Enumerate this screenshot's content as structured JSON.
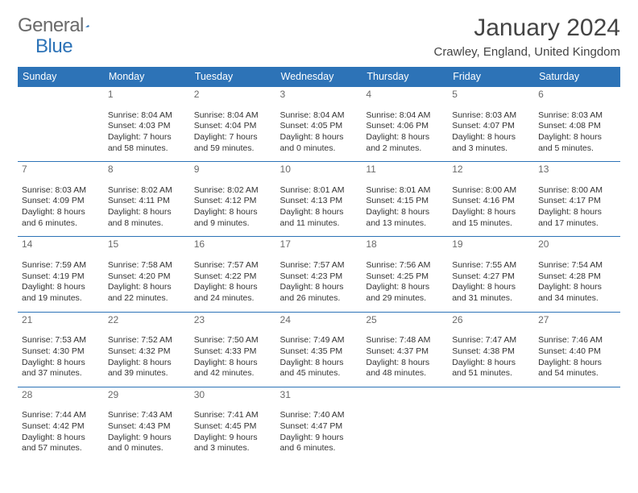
{
  "logo": {
    "word1": "General",
    "word2": "Blue"
  },
  "title": "January 2024",
  "location": "Crawley, England, United Kingdom",
  "colors": {
    "header_bg": "#2d73b7",
    "header_fg": "#ffffff",
    "rule": "#2d73b7",
    "text": "#333333",
    "muted": "#6a6a6a",
    "page_bg": "#ffffff"
  },
  "fonts": {
    "title_size": 30,
    "location_size": 15,
    "weekday_size": 12.5,
    "cell_size": 10.5
  },
  "weekdays": [
    "Sunday",
    "Monday",
    "Tuesday",
    "Wednesday",
    "Thursday",
    "Friday",
    "Saturday"
  ],
  "weeks": [
    [
      null,
      {
        "n": "1",
        "sunrise": "8:04 AM",
        "sunset": "4:03 PM",
        "daylight": "7 hours and 58 minutes."
      },
      {
        "n": "2",
        "sunrise": "8:04 AM",
        "sunset": "4:04 PM",
        "daylight": "7 hours and 59 minutes."
      },
      {
        "n": "3",
        "sunrise": "8:04 AM",
        "sunset": "4:05 PM",
        "daylight": "8 hours and 0 minutes."
      },
      {
        "n": "4",
        "sunrise": "8:04 AM",
        "sunset": "4:06 PM",
        "daylight": "8 hours and 2 minutes."
      },
      {
        "n": "5",
        "sunrise": "8:03 AM",
        "sunset": "4:07 PM",
        "daylight": "8 hours and 3 minutes."
      },
      {
        "n": "6",
        "sunrise": "8:03 AM",
        "sunset": "4:08 PM",
        "daylight": "8 hours and 5 minutes."
      }
    ],
    [
      {
        "n": "7",
        "sunrise": "8:03 AM",
        "sunset": "4:09 PM",
        "daylight": "8 hours and 6 minutes."
      },
      {
        "n": "8",
        "sunrise": "8:02 AM",
        "sunset": "4:11 PM",
        "daylight": "8 hours and 8 minutes."
      },
      {
        "n": "9",
        "sunrise": "8:02 AM",
        "sunset": "4:12 PM",
        "daylight": "8 hours and 9 minutes."
      },
      {
        "n": "10",
        "sunrise": "8:01 AM",
        "sunset": "4:13 PM",
        "daylight": "8 hours and 11 minutes."
      },
      {
        "n": "11",
        "sunrise": "8:01 AM",
        "sunset": "4:15 PM",
        "daylight": "8 hours and 13 minutes."
      },
      {
        "n": "12",
        "sunrise": "8:00 AM",
        "sunset": "4:16 PM",
        "daylight": "8 hours and 15 minutes."
      },
      {
        "n": "13",
        "sunrise": "8:00 AM",
        "sunset": "4:17 PM",
        "daylight": "8 hours and 17 minutes."
      }
    ],
    [
      {
        "n": "14",
        "sunrise": "7:59 AM",
        "sunset": "4:19 PM",
        "daylight": "8 hours and 19 minutes."
      },
      {
        "n": "15",
        "sunrise": "7:58 AM",
        "sunset": "4:20 PM",
        "daylight": "8 hours and 22 minutes."
      },
      {
        "n": "16",
        "sunrise": "7:57 AM",
        "sunset": "4:22 PM",
        "daylight": "8 hours and 24 minutes."
      },
      {
        "n": "17",
        "sunrise": "7:57 AM",
        "sunset": "4:23 PM",
        "daylight": "8 hours and 26 minutes."
      },
      {
        "n": "18",
        "sunrise": "7:56 AM",
        "sunset": "4:25 PM",
        "daylight": "8 hours and 29 minutes."
      },
      {
        "n": "19",
        "sunrise": "7:55 AM",
        "sunset": "4:27 PM",
        "daylight": "8 hours and 31 minutes."
      },
      {
        "n": "20",
        "sunrise": "7:54 AM",
        "sunset": "4:28 PM",
        "daylight": "8 hours and 34 minutes."
      }
    ],
    [
      {
        "n": "21",
        "sunrise": "7:53 AM",
        "sunset": "4:30 PM",
        "daylight": "8 hours and 37 minutes."
      },
      {
        "n": "22",
        "sunrise": "7:52 AM",
        "sunset": "4:32 PM",
        "daylight": "8 hours and 39 minutes."
      },
      {
        "n": "23",
        "sunrise": "7:50 AM",
        "sunset": "4:33 PM",
        "daylight": "8 hours and 42 minutes."
      },
      {
        "n": "24",
        "sunrise": "7:49 AM",
        "sunset": "4:35 PM",
        "daylight": "8 hours and 45 minutes."
      },
      {
        "n": "25",
        "sunrise": "7:48 AM",
        "sunset": "4:37 PM",
        "daylight": "8 hours and 48 minutes."
      },
      {
        "n": "26",
        "sunrise": "7:47 AM",
        "sunset": "4:38 PM",
        "daylight": "8 hours and 51 minutes."
      },
      {
        "n": "27",
        "sunrise": "7:46 AM",
        "sunset": "4:40 PM",
        "daylight": "8 hours and 54 minutes."
      }
    ],
    [
      {
        "n": "28",
        "sunrise": "7:44 AM",
        "sunset": "4:42 PM",
        "daylight": "8 hours and 57 minutes."
      },
      {
        "n": "29",
        "sunrise": "7:43 AM",
        "sunset": "4:43 PM",
        "daylight": "9 hours and 0 minutes."
      },
      {
        "n": "30",
        "sunrise": "7:41 AM",
        "sunset": "4:45 PM",
        "daylight": "9 hours and 3 minutes."
      },
      {
        "n": "31",
        "sunrise": "7:40 AM",
        "sunset": "4:47 PM",
        "daylight": "9 hours and 6 minutes."
      },
      null,
      null,
      null
    ]
  ],
  "labels": {
    "sunrise": "Sunrise:",
    "sunset": "Sunset:",
    "daylight": "Daylight:"
  }
}
